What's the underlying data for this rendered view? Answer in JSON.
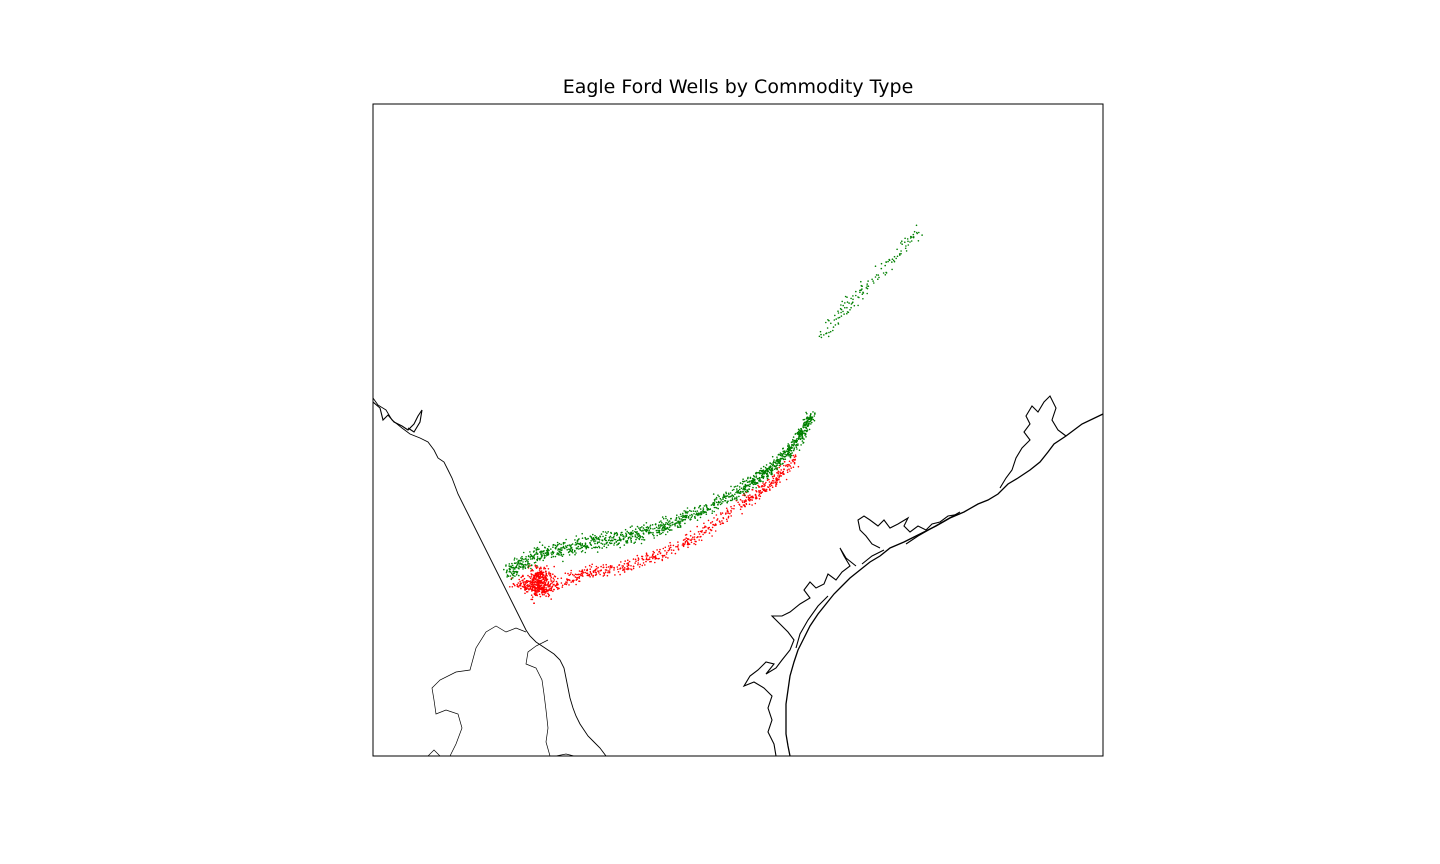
{
  "title": "Eagle Ford Wells by Commodity Type",
  "colors": {
    "background": "#ffffff",
    "frame": "#000000",
    "coastline": "#000000",
    "border": "#000000",
    "gas_wells": "#008000",
    "oil_wells": "#ff0000"
  },
  "chart_data": {
    "type": "scatter",
    "title": "Eagle Ford Wells by Commodity Type",
    "xlabel": "",
    "ylabel": "",
    "grid": false,
    "legend": "none",
    "series": [
      {
        "color": "green",
        "marker": "tiny dot"
      },
      {
        "color": "red",
        "marker": "tiny dot"
      }
    ]
  }
}
